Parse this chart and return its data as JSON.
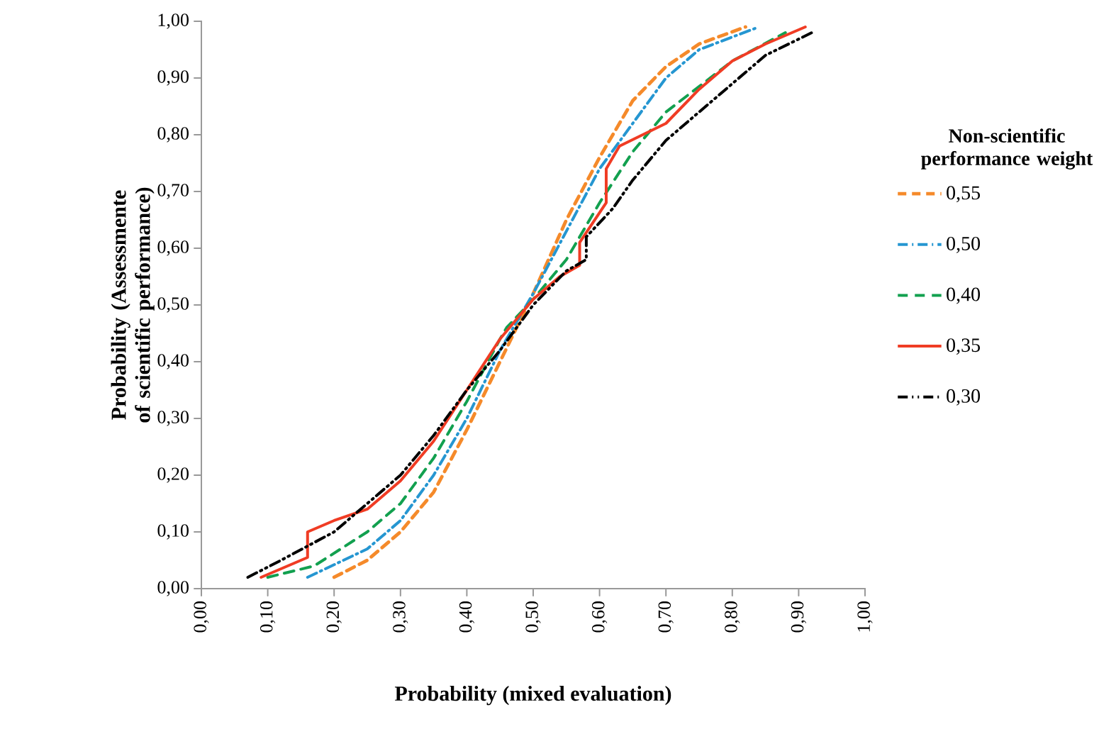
{
  "chart_data": {
    "type": "line",
    "xlabel": "Probability (mixed evaluation)",
    "ylabel": "Probability (Assessmente of scientific performance)",
    "legend_title": "Non-scientific performance weight",
    "legend": "right",
    "grid": false,
    "xlim": [
      0,
      1
    ],
    "ylim": [
      0,
      1
    ],
    "xticks": [
      {
        "value": 0,
        "label": "0,00"
      },
      {
        "value": 0.1,
        "label": "0,10"
      },
      {
        "value": 0.2,
        "label": "0,20"
      },
      {
        "value": 0.3,
        "label": "0,30"
      },
      {
        "value": 0.4,
        "label": "0,40"
      },
      {
        "value": 0.5,
        "label": "0,50"
      },
      {
        "value": 0.6,
        "label": "0,60"
      },
      {
        "value": 0.7,
        "label": "0,70"
      },
      {
        "value": 0.8,
        "label": "0,80"
      },
      {
        "value": 0.9,
        "label": "0,90"
      },
      {
        "value": 1,
        "label": "1,00"
      }
    ],
    "yticks": [
      {
        "value": 0,
        "label": "0,00"
      },
      {
        "value": 0.1,
        "label": "0,10"
      },
      {
        "value": 0.2,
        "label": "0,20"
      },
      {
        "value": 0.3,
        "label": "0,30"
      },
      {
        "value": 0.4,
        "label": "0,40"
      },
      {
        "value": 0.5,
        "label": "0,50"
      },
      {
        "value": 0.6,
        "label": "0,60"
      },
      {
        "value": 0.7,
        "label": "0,70"
      },
      {
        "value": 0.8,
        "label": "0,80"
      },
      {
        "value": 0.9,
        "label": "0,90"
      },
      {
        "value": 1,
        "label": "1,00"
      }
    ],
    "series": [
      {
        "name": "0,55",
        "color": "#f58a2a",
        "line_style": "dashed",
        "x": [
          0.2,
          0.25,
          0.3,
          0.35,
          0.4,
          0.45,
          0.5,
          0.55,
          0.6,
          0.65,
          0.7,
          0.75,
          0.82
        ],
        "values": [
          0.02,
          0.05,
          0.1,
          0.17,
          0.28,
          0.4,
          0.52,
          0.65,
          0.76,
          0.86,
          0.92,
          0.96,
          0.99
        ]
      },
      {
        "name": "0,50",
        "color": "#2596d1",
        "line_style": "dashdot",
        "x": [
          0.16,
          0.25,
          0.3,
          0.35,
          0.4,
          0.45,
          0.5,
          0.55,
          0.6,
          0.65,
          0.7,
          0.75,
          0.84
        ],
        "values": [
          0.02,
          0.07,
          0.12,
          0.2,
          0.3,
          0.42,
          0.52,
          0.63,
          0.74,
          0.82,
          0.9,
          0.95,
          0.99
        ]
      },
      {
        "name": "0,40",
        "color": "#12a04f",
        "line_style": "longdash",
        "x": [
          0.1,
          0.17,
          0.25,
          0.3,
          0.35,
          0.4,
          0.45,
          0.46,
          0.5,
          0.55,
          0.6,
          0.65,
          0.7,
          0.8,
          0.88
        ],
        "values": [
          0.02,
          0.04,
          0.1,
          0.15,
          0.23,
          0.33,
          0.44,
          0.46,
          0.51,
          0.58,
          0.68,
          0.77,
          0.84,
          0.93,
          0.98
        ]
      },
      {
        "name": "0,35",
        "color": "#f03c24",
        "line_style": "solid",
        "x": [
          0.09,
          0.16,
          0.16,
          0.2,
          0.25,
          0.3,
          0.35,
          0.4,
          0.45,
          0.5,
          0.54,
          0.57,
          0.57,
          0.61,
          0.61,
          0.63,
          0.7,
          0.75,
          0.8,
          0.85,
          0.91
        ],
        "values": [
          0.02,
          0.055,
          0.1,
          0.12,
          0.14,
          0.19,
          0.26,
          0.35,
          0.44,
          0.51,
          0.55,
          0.57,
          0.61,
          0.68,
          0.74,
          0.78,
          0.82,
          0.88,
          0.93,
          0.96,
          0.99
        ]
      },
      {
        "name": "0,30",
        "color": "#000000",
        "line_style": "dashdotdot",
        "x": [
          0.07,
          0.12,
          0.2,
          0.25,
          0.3,
          0.35,
          0.4,
          0.45,
          0.5,
          0.55,
          0.58,
          0.58,
          0.62,
          0.65,
          0.7,
          0.75,
          0.8,
          0.85,
          0.92
        ],
        "values": [
          0.02,
          0.05,
          0.1,
          0.15,
          0.2,
          0.27,
          0.35,
          0.42,
          0.5,
          0.56,
          0.58,
          0.62,
          0.67,
          0.72,
          0.79,
          0.84,
          0.89,
          0.94,
          0.98
        ]
      }
    ]
  }
}
